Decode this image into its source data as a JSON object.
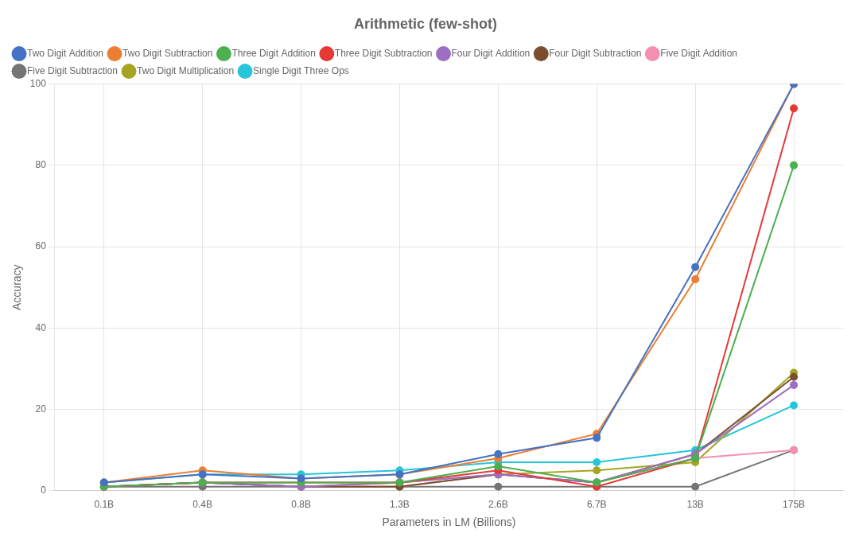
{
  "chart_data": {
    "type": "line",
    "title": "Arithmetic (few-shot)",
    "x_label": "Parameters in LM (Billions)",
    "y_label": "Accuracy",
    "categories": [
      "0.1B",
      "0.4B",
      "0.8B",
      "1.3B",
      "2.6B",
      "6.7B",
      "13B",
      "175B"
    ],
    "series": [
      {
        "name": "Two Digit Addition",
        "color": "#4472C4",
        "marker": "circle",
        "values": [
          2,
          4,
          3,
          4,
          9,
          13,
          55,
          100
        ]
      },
      {
        "name": "Two Digit Subtraction",
        "color": "#ED7D31",
        "marker": "circle",
        "values": [
          2,
          5,
          3,
          4,
          8,
          14,
          52,
          100
        ]
      },
      {
        "name": "Three Digit Addition",
        "color": "#4CAF50",
        "marker": "circle",
        "values": [
          1,
          2,
          2,
          2,
          6,
          2,
          8,
          80
        ]
      },
      {
        "name": "Three Digit Subtraction",
        "color": "#E53935",
        "marker": "circle",
        "values": [
          1,
          2,
          2,
          2,
          5,
          1,
          8,
          94
        ]
      },
      {
        "name": "Four Digit Addition",
        "color": "#9C6FC4",
        "marker": "circle",
        "values": [
          1,
          2,
          1,
          2,
          4,
          2,
          9,
          26
        ]
      },
      {
        "name": "Four Digit Subtraction",
        "color": "#7B4F2E",
        "marker": "circle",
        "values": [
          1,
          2,
          1,
          1,
          4,
          2,
          9,
          28
        ]
      },
      {
        "name": "Five Digit Addition",
        "color": "#F48FB1",
        "marker": "circle",
        "values": [
          1,
          2,
          1,
          1,
          4,
          2,
          8,
          10
        ]
      },
      {
        "name": "Five Digit Subtraction",
        "color": "#757575",
        "marker": "circle",
        "values": [
          1,
          1,
          1,
          1,
          1,
          1,
          1,
          10
        ]
      },
      {
        "name": "Two Digit Multiplication",
        "color": "#A5A523",
        "marker": "circle",
        "values": [
          1,
          2,
          1,
          2,
          4,
          5,
          7,
          29
        ]
      },
      {
        "name": "Single Digit Three Ops",
        "color": "#26C6DA",
        "marker": "circle",
        "values": [
          2,
          4,
          4,
          5,
          7,
          7,
          10,
          21
        ]
      }
    ],
    "ylim": [
      0,
      100
    ],
    "yticks": [
      0,
      20,
      40,
      60,
      80,
      100
    ],
    "grid": true,
    "legend": "upper left"
  }
}
